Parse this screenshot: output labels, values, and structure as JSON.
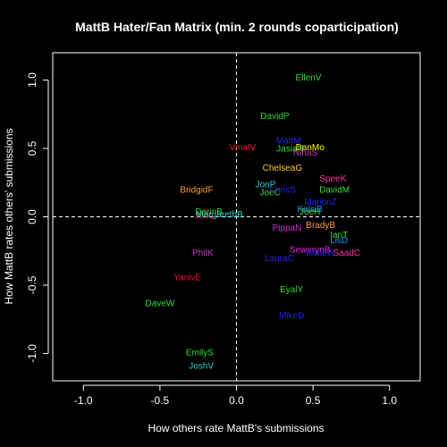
{
  "chart_data": {
    "type": "scatter",
    "title": "MattB Hater/Fan Matrix (min. 2 rounds coparticipation)",
    "xlabel": "How others rate MattB's submissions",
    "ylabel": "How MattB rates others' submissions",
    "xlim": [
      -1.2,
      1.2
    ],
    "ylim": [
      -1.2,
      1.2
    ],
    "x_ticks": [
      -1.0,
      -0.5,
      0.0,
      0.5,
      1.0
    ],
    "x_tick_labels": [
      "-1.0",
      "-0.5",
      "0.0",
      "0.5",
      "1.0"
    ],
    "y_ticks": [
      -1.0,
      -0.5,
      0.0,
      0.5,
      1.0
    ],
    "y_tick_labels": [
      "-1.0",
      "-0.5",
      "0.0",
      "0.5",
      "1.0"
    ],
    "reference_lines": {
      "x": 0,
      "y": 0,
      "style": "dashed"
    },
    "grid": false,
    "legend": "none",
    "points": [
      {
        "label": "EllenV",
        "x": 0.47,
        "y": 1.02,
        "color": "#33dd33"
      },
      {
        "label": "DavidP",
        "x": 0.25,
        "y": 0.74,
        "color": "#33dd33"
      },
      {
        "label": "MattM",
        "x": 0.34,
        "y": 0.56,
        "color": "#2222ee"
      },
      {
        "label": "VmaIV",
        "x": 0.04,
        "y": 0.51,
        "color": "#ee1133"
      },
      {
        "label": "JasiaN",
        "x": 0.35,
        "y": 0.5,
        "color": "#33dd33"
      },
      {
        "label": "DanMo",
        "x": 0.48,
        "y": 0.51,
        "color": "#ffff00"
      },
      {
        "label": "NinaS",
        "x": 0.45,
        "y": 0.47,
        "color": "#cc33cc"
      },
      {
        "label": "ChelseaG",
        "x": 0.3,
        "y": 0.36,
        "color": "#ffcc33"
      },
      {
        "label": "SpeeK",
        "x": 0.63,
        "y": 0.28,
        "color": "#ff3399"
      },
      {
        "label": "JonP",
        "x": 0.19,
        "y": 0.24,
        "color": "#33cccc"
      },
      {
        "label": "BridgidF",
        "x": -0.26,
        "y": 0.2,
        "color": "#ff9933"
      },
      {
        "label": "DavidM",
        "x": 0.64,
        "y": 0.2,
        "color": "#33dd33"
      },
      {
        "label": "JoeC",
        "x": 0.22,
        "y": 0.18,
        "color": "#33dd33"
      },
      {
        "label": "ChrisS",
        "x": 0.3,
        "y": 0.2,
        "color": "#2222ee"
      },
      {
        "label": "MarionZ",
        "x": 0.55,
        "y": 0.11,
        "color": "#2222ee"
      },
      {
        "label": "KelsiB",
        "x": 0.48,
        "y": 0.06,
        "color": "#2299ee"
      },
      {
        "label": "JoeH",
        "x": 0.48,
        "y": 0.04,
        "color": "#33dd33"
      },
      {
        "label": "DarinB",
        "x": -0.18,
        "y": 0.04,
        "color": "#33dd33"
      },
      {
        "label": "JoeJ",
        "x": -0.21,
        "y": 0.01,
        "color": "#ee1133"
      },
      {
        "label": "MargarethB",
        "x": -0.11,
        "y": 0.02,
        "color": "#33cccc"
      },
      {
        "label": "BradyB",
        "x": 0.55,
        "y": -0.06,
        "color": "#ff9933"
      },
      {
        "label": "PippaN",
        "x": 0.33,
        "y": -0.08,
        "color": "#cc33cc"
      },
      {
        "label": "IanT",
        "x": 0.67,
        "y": -0.13,
        "color": "#33dd33"
      },
      {
        "label": "LisD",
        "x": 0.67,
        "y": -0.17,
        "color": "#2299ee"
      },
      {
        "label": "SewerynB",
        "x": 0.48,
        "y": -0.24,
        "color": "#ee22ee"
      },
      {
        "label": "AnneW",
        "x": 0.55,
        "y": -0.26,
        "color": "#2222ee"
      },
      {
        "label": "SaadC",
        "x": 0.72,
        "y": -0.26,
        "color": "#ff3399"
      },
      {
        "label": "PhilK",
        "x": -0.22,
        "y": -0.26,
        "color": "#cc33cc"
      },
      {
        "label": "LauraC",
        "x": 0.28,
        "y": -0.3,
        "color": "#2222ee"
      },
      {
        "label": "YanivE",
        "x": -0.32,
        "y": -0.44,
        "color": "#ee1133"
      },
      {
        "label": "EyalY",
        "x": 0.36,
        "y": -0.53,
        "color": "#33dd33"
      },
      {
        "label": "DaveW",
        "x": -0.5,
        "y": -0.63,
        "color": "#33dd33"
      },
      {
        "label": "MikeD",
        "x": 0.36,
        "y": -0.72,
        "color": "#2222ee"
      },
      {
        "label": "EmilyS",
        "x": -0.24,
        "y": -0.99,
        "color": "#33dd33"
      },
      {
        "label": "JoshV",
        "x": -0.23,
        "y": -1.09,
        "color": "#33cccc"
      }
    ]
  }
}
